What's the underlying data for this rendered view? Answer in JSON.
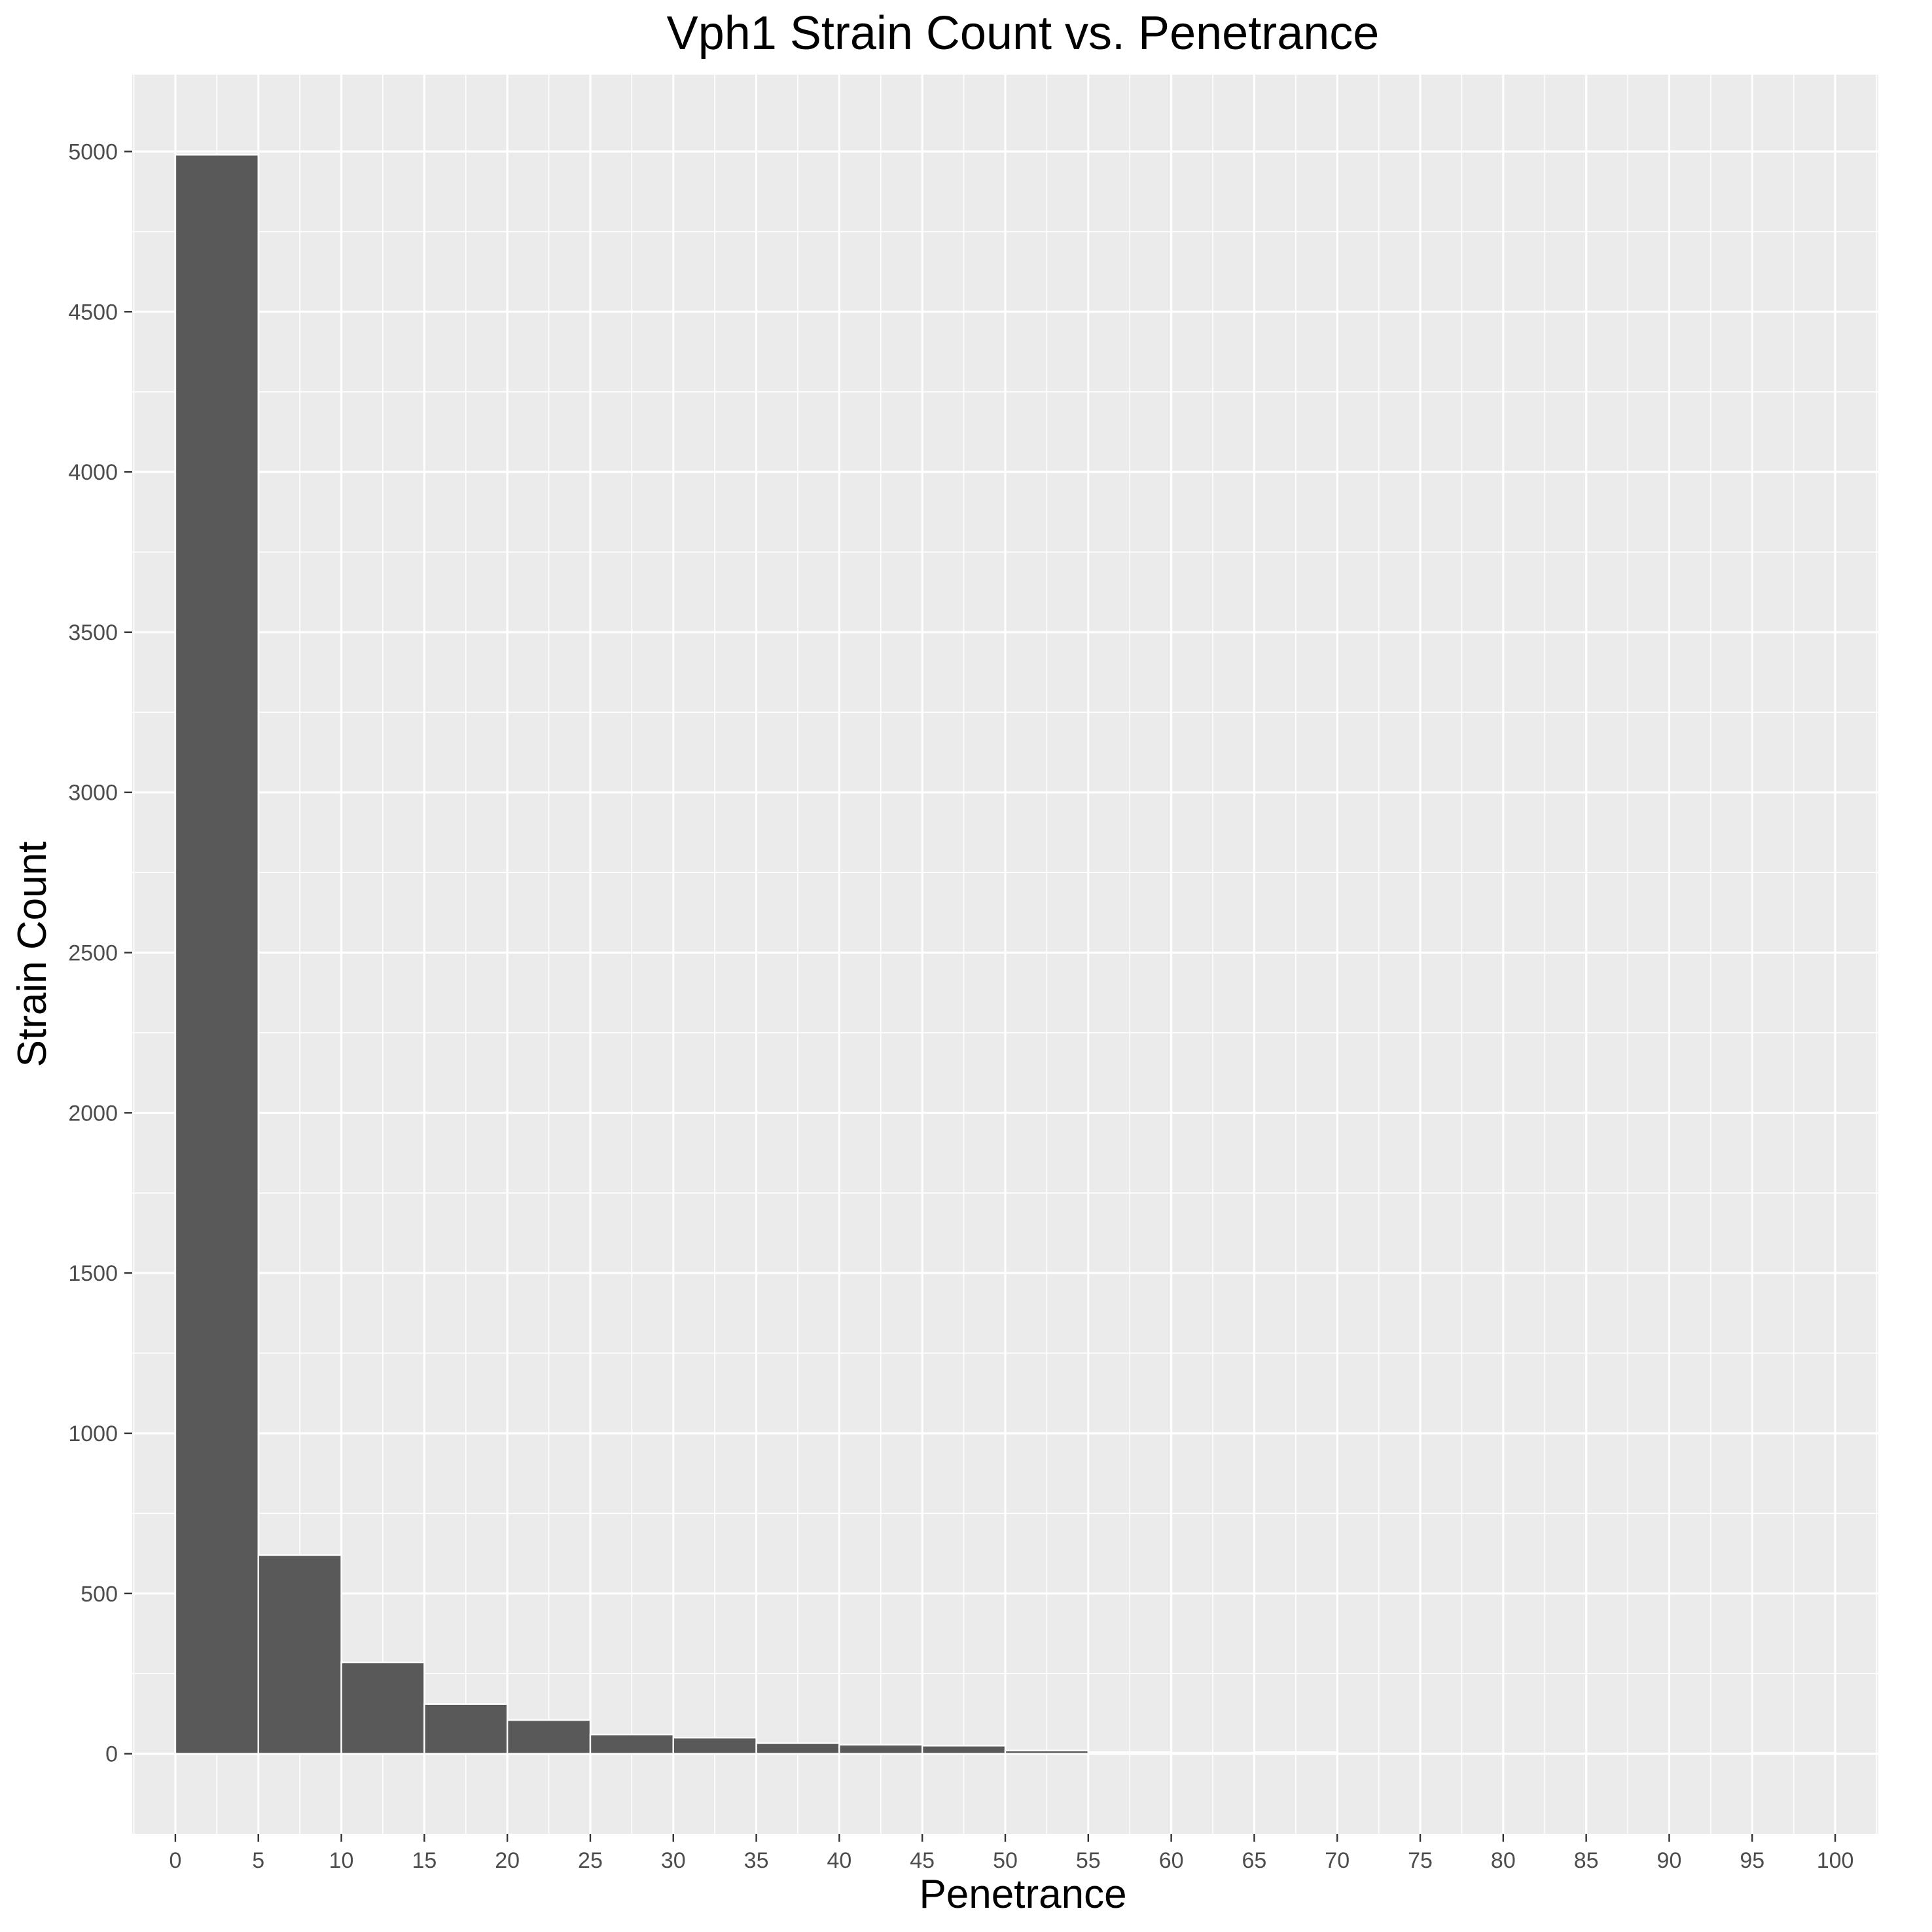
{
  "colors": {
    "panel": "#ebebeb",
    "grid": "#ffffff",
    "bar_fill": "#595959",
    "bar_outline": "#ffffff",
    "tick_text": "#4d4d4d",
    "tick_mark": "#333333"
  },
  "chart_data": {
    "type": "bar",
    "title": "Vph1 Strain Count vs. Penetrance",
    "xlabel": "Penetrance",
    "ylabel": "Strain Count",
    "xlim": [
      -2.6,
      102.6
    ],
    "ylim": [
      -250,
      5240
    ],
    "x_ticks": [
      0,
      5,
      10,
      15,
      20,
      25,
      30,
      35,
      40,
      45,
      50,
      55,
      60,
      65,
      70,
      75,
      80,
      85,
      90,
      95,
      100
    ],
    "y_ticks": [
      0,
      500,
      1000,
      1500,
      2000,
      2500,
      3000,
      3500,
      4000,
      4500,
      5000
    ],
    "grid": true,
    "legend": "none",
    "bin_width": 5,
    "bins": [
      {
        "start": 0,
        "end": 5,
        "count": 4990
      },
      {
        "start": 5,
        "end": 10,
        "count": 620
      },
      {
        "start": 10,
        "end": 15,
        "count": 285
      },
      {
        "start": 15,
        "end": 20,
        "count": 155
      },
      {
        "start": 20,
        "end": 25,
        "count": 105
      },
      {
        "start": 25,
        "end": 30,
        "count": 60
      },
      {
        "start": 30,
        "end": 35,
        "count": 50
      },
      {
        "start": 35,
        "end": 40,
        "count": 33
      },
      {
        "start": 40,
        "end": 45,
        "count": 28
      },
      {
        "start": 45,
        "end": 50,
        "count": 25
      },
      {
        "start": 50,
        "end": 55,
        "count": 10
      },
      {
        "start": 55,
        "end": 60,
        "count": 5
      },
      {
        "start": 60,
        "end": 65,
        "count": 3
      },
      {
        "start": 65,
        "end": 70,
        "count": 5
      },
      {
        "start": 70,
        "end": 75,
        "count": 1
      },
      {
        "start": 75,
        "end": 80,
        "count": 1
      },
      {
        "start": 80,
        "end": 85,
        "count": 1
      },
      {
        "start": 85,
        "end": 90,
        "count": 1
      },
      {
        "start": 90,
        "end": 95,
        "count": 1
      },
      {
        "start": 95,
        "end": 100,
        "count": 3
      }
    ]
  }
}
